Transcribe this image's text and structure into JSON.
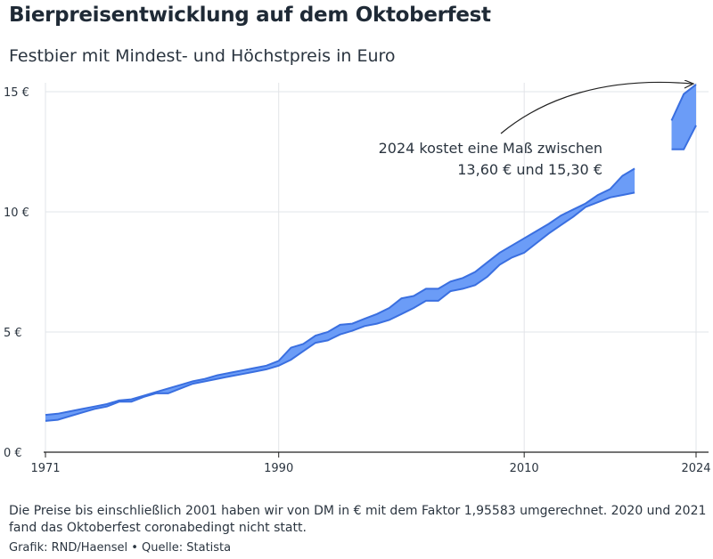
{
  "header": {
    "title": "Bierpreisentwicklung auf dem Oktoberfest",
    "subtitle": "Festbier mit Mindest- und Höchstpreis in Euro"
  },
  "footer": {
    "note": "Die Preise bis einschließlich 2001 haben wir von DM in € mit dem Faktor 1,95583 umgerechnet. 2020 und 2021 fand das Oktoberfest coronabedingt nicht statt.",
    "source": "Grafik: RND/Haensel • Quelle: Statista"
  },
  "colors": {
    "band_fill": "#6b9cf7",
    "band_stroke": "#3a6fe0",
    "grid": "#e2e4e8",
    "axis": "#222222"
  },
  "chart_data": {
    "type": "area",
    "title": "Bierpreisentwicklung auf dem Oktoberfest",
    "subtitle": "Festbier mit Mindest- und Höchstpreis in Euro",
    "xlabel": "",
    "ylabel": "",
    "xlim": [
      1971,
      2024
    ],
    "ylim": [
      0,
      15
    ],
    "x_ticks": [
      1971,
      1990,
      2010,
      2024
    ],
    "x_tick_labels": [
      "1971",
      "1990",
      "2010",
      "2024"
    ],
    "y_ticks": [
      0,
      5,
      10,
      15
    ],
    "y_tick_labels": [
      "0 €",
      "5 €",
      "10 €",
      "15 €"
    ],
    "grid": true,
    "annotation": {
      "line1": "2024 kostet eine Maß zwischen",
      "line2": "13,60 € und 15,30 €"
    },
    "series": [
      {
        "x": [
          1971,
          1972,
          1973,
          1974,
          1975,
          1976,
          1977,
          1978,
          1979,
          1980,
          1981,
          1982,
          1983,
          1984,
          1985,
          1986,
          1987,
          1988,
          1989,
          1990,
          1991,
          1992,
          1993,
          1994,
          1995,
          1996,
          1997,
          1998,
          1999,
          2000,
          2001,
          2002,
          2003,
          2004,
          2005,
          2006,
          2007,
          2008,
          2009,
          2010,
          2011,
          2012,
          2013,
          2014,
          2015,
          2016,
          2017,
          2018,
          2019
        ],
        "min": [
          1.3,
          1.35,
          1.5,
          1.65,
          1.8,
          1.9,
          2.1,
          2.1,
          2.3,
          2.45,
          2.45,
          2.65,
          2.85,
          2.95,
          3.05,
          3.15,
          3.25,
          3.35,
          3.45,
          3.6,
          3.85,
          4.2,
          4.55,
          4.65,
          4.9,
          5.05,
          5.25,
          5.35,
          5.5,
          5.75,
          6.0,
          6.3,
          6.3,
          6.7,
          6.8,
          6.95,
          7.3,
          7.8,
          8.1,
          8.3,
          8.7,
          9.1,
          9.45,
          9.8,
          10.2,
          10.4,
          10.6,
          10.7,
          10.8
        ],
        "max": [
          1.55,
          1.6,
          1.7,
          1.8,
          1.9,
          2.0,
          2.15,
          2.2,
          2.35,
          2.5,
          2.65,
          2.8,
          2.95,
          3.05,
          3.2,
          3.3,
          3.4,
          3.5,
          3.6,
          3.8,
          4.35,
          4.5,
          4.85,
          5.0,
          5.3,
          5.35,
          5.55,
          5.75,
          6.0,
          6.4,
          6.5,
          6.8,
          6.8,
          7.1,
          7.25,
          7.5,
          7.9,
          8.3,
          8.6,
          8.9,
          9.2,
          9.5,
          9.85,
          10.1,
          10.35,
          10.7,
          10.95,
          11.5,
          11.8
        ]
      },
      {
        "x": [
          2022,
          2023,
          2024
        ],
        "min": [
          12.6,
          12.6,
          13.6
        ],
        "max": [
          13.8,
          14.9,
          15.3
        ]
      }
    ]
  }
}
